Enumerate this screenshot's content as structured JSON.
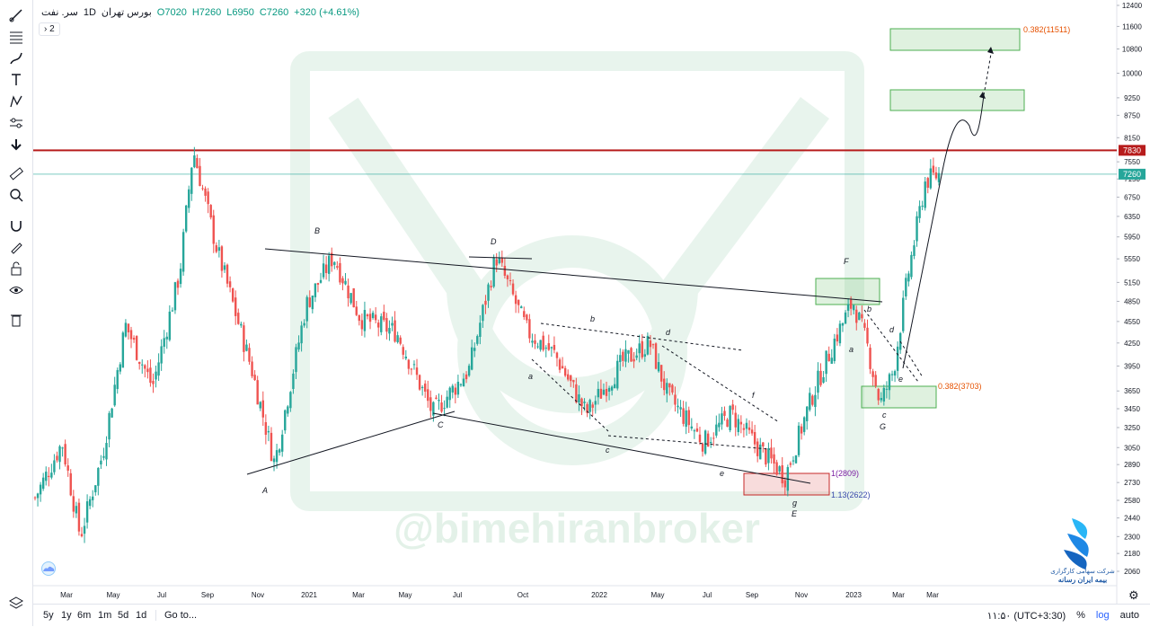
{
  "legend": {
    "symbol": "سر. نفت",
    "interval": "1D",
    "exchange": "بورس تهران",
    "open": "O7020",
    "high": "H7260",
    "low": "L6950",
    "close": "C7260",
    "change": "+320 (+4.61%)",
    "indicator_count": "2"
  },
  "watermark": "@bimehiranbroker",
  "logo_text": {
    "line1": "شرکت سهامی کارگزاری",
    "line2": "بیمه ایران رسانه"
  },
  "bottom_bar": {
    "timeframes": [
      "5y",
      "1y",
      "6m",
      "1m",
      "5d",
      "1d"
    ],
    "goto": "Go to...",
    "clock": "۱۱:۵۰ (UTC+3:30)",
    "percent": "%",
    "log": "log",
    "auto": "auto"
  },
  "colors": {
    "up": "#26a69a",
    "down": "#ef5350",
    "resistance": "#b71c1c",
    "current": "#26a69a",
    "target_box": "#4caf50",
    "support_box": "#e57373"
  },
  "chart_data": {
    "type": "candlestick",
    "y_axis": {
      "scale": "log",
      "ticks": [
        2060,
        2180,
        2300,
        2440,
        2580,
        2730,
        2890,
        3050,
        3250,
        3450,
        3650,
        3950,
        4250,
        4550,
        4850,
        5150,
        5550,
        5950,
        6350,
        6750,
        7150,
        7550,
        8150,
        8750,
        9250,
        10000,
        10800,
        11600,
        12400
      ]
    },
    "x_axis": {
      "ticks": [
        "Mar",
        "May",
        "Jul",
        "Sep",
        "Nov",
        "2021",
        "Mar",
        "May",
        "Jul",
        "Oct",
        "2022",
        "May",
        "Jul",
        "Sep",
        "Nov",
        "2023",
        "Mar",
        "Mar"
      ]
    },
    "price_series": [
      {
        "t": 0.0,
        "p": 2600
      },
      {
        "t": 0.03,
        "p": 3100
      },
      {
        "t": 0.05,
        "p": 2300
      },
      {
        "t": 0.075,
        "p": 3000
      },
      {
        "t": 0.1,
        "p": 4500
      },
      {
        "t": 0.13,
        "p": 3700
      },
      {
        "t": 0.16,
        "p": 5300
      },
      {
        "t": 0.175,
        "p": 7850
      },
      {
        "t": 0.2,
        "p": 5800
      },
      {
        "t": 0.24,
        "p": 3900
      },
      {
        "t": 0.265,
        "p": 2900
      },
      {
        "t": 0.3,
        "p": 4800
      },
      {
        "t": 0.33,
        "p": 5600
      },
      {
        "t": 0.36,
        "p": 4600
      },
      {
        "t": 0.4,
        "p": 4400
      },
      {
        "t": 0.44,
        "p": 3400
      },
      {
        "t": 0.48,
        "p": 3900
      },
      {
        "t": 0.51,
        "p": 5600
      },
      {
        "t": 0.545,
        "p": 4400
      },
      {
        "t": 0.575,
        "p": 4100
      },
      {
        "t": 0.61,
        "p": 3400
      },
      {
        "t": 0.65,
        "p": 4000
      },
      {
        "t": 0.68,
        "p": 4250
      },
      {
        "t": 0.7,
        "p": 3600
      },
      {
        "t": 0.74,
        "p": 3100
      },
      {
        "t": 0.77,
        "p": 3400
      },
      {
        "t": 0.8,
        "p": 3050
      },
      {
        "t": 0.83,
        "p": 2780
      },
      {
        "t": 0.86,
        "p": 3600
      },
      {
        "t": 0.885,
        "p": 4300
      },
      {
        "t": 0.905,
        "p": 4850
      },
      {
        "t": 0.92,
        "p": 4250
      },
      {
        "t": 0.935,
        "p": 3500
      },
      {
        "t": 0.95,
        "p": 3900
      },
      {
        "t": 0.965,
        "p": 5200
      },
      {
        "t": 0.985,
        "p": 7100
      },
      {
        "t": 1.0,
        "p": 7260
      }
    ],
    "horizontal_lines": [
      {
        "name": "resistance",
        "value": 7830,
        "label": "7830"
      },
      {
        "name": "last-price",
        "value": 7260,
        "label": "7260"
      }
    ],
    "wave_labels": [
      "A",
      "B",
      "C",
      "D",
      "E",
      "F",
      "G",
      "a",
      "b",
      "c",
      "d",
      "e",
      "f",
      "g",
      "a",
      "b",
      "c",
      "d",
      "e"
    ],
    "fib_labels": {
      "top_target": "0.382(11511)",
      "mid_support": "0.382(3703)",
      "low_1": "1(2809)",
      "low_113": "1.13(2622)"
    }
  }
}
